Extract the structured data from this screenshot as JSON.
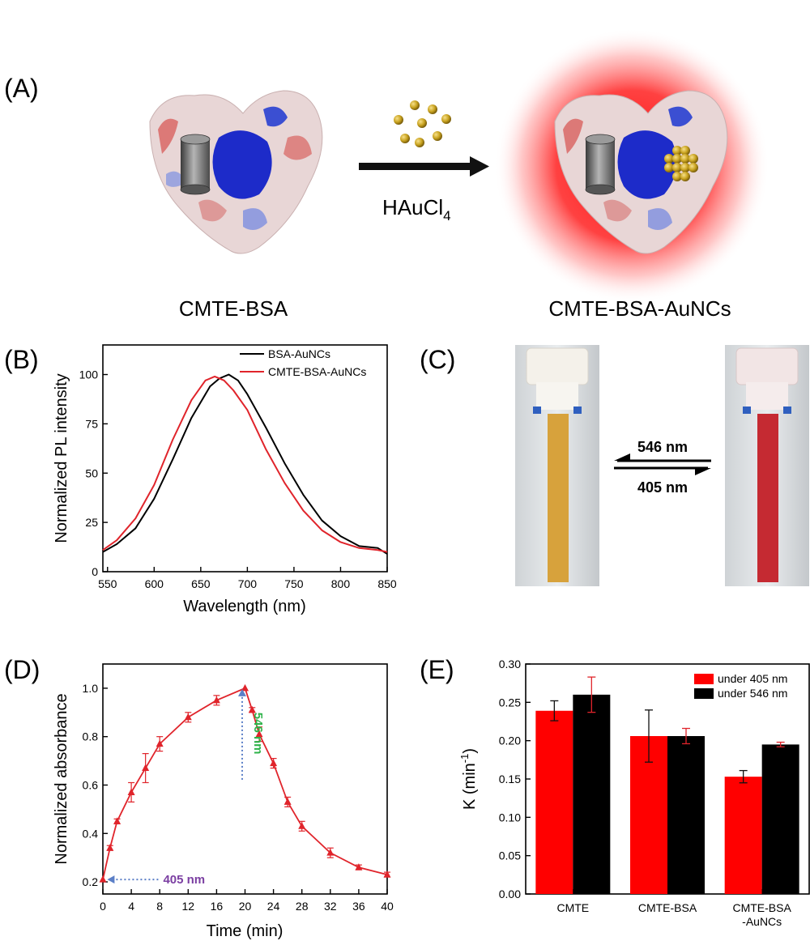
{
  "panel_a": {
    "label": "(A)",
    "reagent": "HAuCl",
    "reagent_subscript": "4",
    "left_caption": "CMTE-BSA",
    "right_caption": "CMTE-BSA-AuNCs"
  },
  "panel_c": {
    "label": "(C)",
    "arrow_top": "546 nm",
    "arrow_bottom": "405 nm",
    "cuvette_colors": {
      "left": "#d7a23c",
      "right": "#c52a32"
    }
  },
  "chart_data": [
    {
      "panel": "(B)",
      "type": "line",
      "xlabel": "Wavelength (nm)",
      "ylabel": "Normalized PL intensity",
      "xlim": [
        545,
        850
      ],
      "ylim": [
        0,
        115
      ],
      "xticks": [
        550,
        600,
        650,
        700,
        750,
        800,
        850
      ],
      "yticks": [
        0,
        25,
        50,
        75,
        100
      ],
      "legend_position": "top-right",
      "series": [
        {
          "name": "BSA-AuNCs",
          "color": "#000000",
          "x": [
            545,
            560,
            580,
            600,
            620,
            640,
            660,
            670,
            680,
            690,
            700,
            720,
            740,
            760,
            780,
            800,
            820,
            840,
            850
          ],
          "y": [
            10,
            14,
            22,
            37,
            57,
            78,
            94,
            98,
            100,
            97,
            90,
            73,
            55,
            39,
            26,
            18,
            13,
            12,
            9
          ]
        },
        {
          "name": "CMTE-BSA-AuNCs",
          "color": "#e0242b",
          "x": [
            545,
            560,
            580,
            600,
            620,
            640,
            655,
            665,
            675,
            685,
            700,
            720,
            740,
            760,
            780,
            800,
            820,
            840,
            850
          ],
          "y": [
            11,
            16,
            27,
            44,
            67,
            87,
            97,
            99,
            97,
            92,
            82,
            62,
            45,
            31,
            21,
            15,
            12,
            11,
            10
          ]
        }
      ]
    },
    {
      "panel": "(D)",
      "type": "line",
      "xlabel": "Time (min)",
      "ylabel": "Normalized absorbance",
      "xlim": [
        0,
        40
      ],
      "ylim": [
        0.15,
        1.1
      ],
      "xticks": [
        0,
        4,
        8,
        12,
        16,
        20,
        24,
        28,
        32,
        36,
        40
      ],
      "yticks": [
        0.2,
        0.4,
        0.6,
        0.8,
        1.0
      ],
      "ytick_labels": [
        "0.2",
        "0.4",
        "0.6",
        "0.8",
        "1.0"
      ],
      "series": [
        {
          "color": "#e0242b",
          "x": [
            0,
            1,
            2,
            4,
            6,
            8,
            12,
            16,
            20,
            21,
            22,
            24,
            26,
            28,
            32,
            36,
            40
          ],
          "y": [
            0.21,
            0.34,
            0.45,
            0.57,
            0.67,
            0.77,
            0.88,
            0.95,
            1.0,
            0.91,
            0.81,
            0.69,
            0.53,
            0.43,
            0.32,
            0.26,
            0.23
          ],
          "err": [
            0.0,
            0.01,
            0.01,
            0.04,
            0.06,
            0.03,
            0.02,
            0.02,
            0.0,
            0.01,
            0.03,
            0.02,
            0.02,
            0.02,
            0.02,
            0.01,
            0.01
          ]
        }
      ],
      "annotations": [
        {
          "text": "405 nm",
          "color": "#7b3fa2"
        },
        {
          "text": "546 nm",
          "color": "#2fb34a"
        }
      ]
    },
    {
      "panel": "(E)",
      "type": "bar",
      "ylabel": "K (min",
      "ylabel_superscript": "-1",
      "ylabel_close": ")",
      "ylim": [
        0,
        0.3
      ],
      "yticks": [
        0.0,
        0.05,
        0.1,
        0.15,
        0.2,
        0.25,
        0.3
      ],
      "ytick_labels": [
        "0.00",
        "0.05",
        "0.10",
        "0.15",
        "0.20",
        "0.25",
        "0.30"
      ],
      "categories": [
        "CMTE",
        "CMTE-BSA",
        "CMTE-BSA\n-AuNCs"
      ],
      "legend_position": "top-right",
      "series": [
        {
          "name": "under 405 nm",
          "color": "#ff0000",
          "values": [
            0.239,
            0.206,
            0.153
          ],
          "err": [
            0.013,
            0.034,
            0.008
          ]
        },
        {
          "name": "under 546 nm",
          "color": "#000000",
          "values": [
            0.26,
            0.206,
            0.195
          ],
          "err": [
            0.023,
            0.01,
            0.003
          ]
        }
      ]
    }
  ]
}
